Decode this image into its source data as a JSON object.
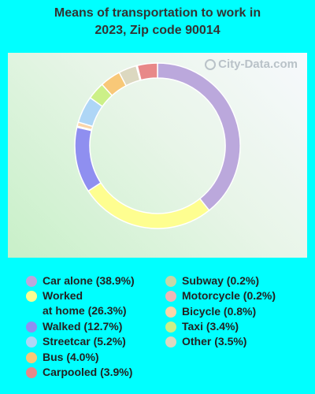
{
  "title": {
    "line1": "Means of transportation to work in",
    "line2": "2023, Zip code 90014"
  },
  "watermark": "City-Data.com",
  "chart_data": {
    "type": "pie",
    "subtype": "donut",
    "title": "Means of transportation to work in 2023, Zip code 90014",
    "unit": "%",
    "series": [
      {
        "name": "Car alone",
        "label_lines": [
          "Car alone (38.9%)"
        ],
        "value": 38.9,
        "color": "#bba8dc"
      },
      {
        "name": "Worked at home",
        "label_lines": [
          "Worked",
          "at home (26.3%)"
        ],
        "value": 26.3,
        "color": "#fefe90"
      },
      {
        "name": "Walked",
        "label_lines": [
          "Walked (12.7%)"
        ],
        "value": 12.7,
        "color": "#8f8ff0"
      },
      {
        "name": "Motorcycle",
        "label_lines": [
          "Motorcycle (0.2%)"
        ],
        "value": 0.2,
        "color": "#f0b6b6"
      },
      {
        "name": "Bicycle",
        "label_lines": [
          "Bicycle (0.8%)"
        ],
        "value": 0.8,
        "color": "#fbd5a8"
      },
      {
        "name": "Streetcar",
        "label_lines": [
          "Streetcar (5.2%)"
        ],
        "value": 5.2,
        "color": "#aed6f6"
      },
      {
        "name": "Taxi",
        "label_lines": [
          "Taxi (3.4%)"
        ],
        "value": 3.4,
        "color": "#ccf088"
      },
      {
        "name": "Bus",
        "label_lines": [
          "Bus (4.0%)"
        ],
        "value": 4.0,
        "color": "#f8c878"
      },
      {
        "name": "Other",
        "label_lines": [
          "Other (3.5%)"
        ],
        "value": 3.5,
        "color": "#dcd8c0"
      },
      {
        "name": "Subway",
        "label_lines": [
          "Subway (0.2%)"
        ],
        "value": 0.2,
        "color": "#c4d8a8"
      },
      {
        "name": "Carpooled",
        "label_lines": [
          "Carpooled (3.9%)"
        ],
        "value": 3.9,
        "color": "#e88888"
      }
    ],
    "legend_columns": [
      [
        "Car alone",
        "Worked at home",
        "Walked",
        "Streetcar",
        "Bus",
        "Carpooled"
      ],
      [
        "Subway",
        "Motorcycle",
        "Bicycle",
        "Taxi",
        "Other"
      ]
    ]
  }
}
